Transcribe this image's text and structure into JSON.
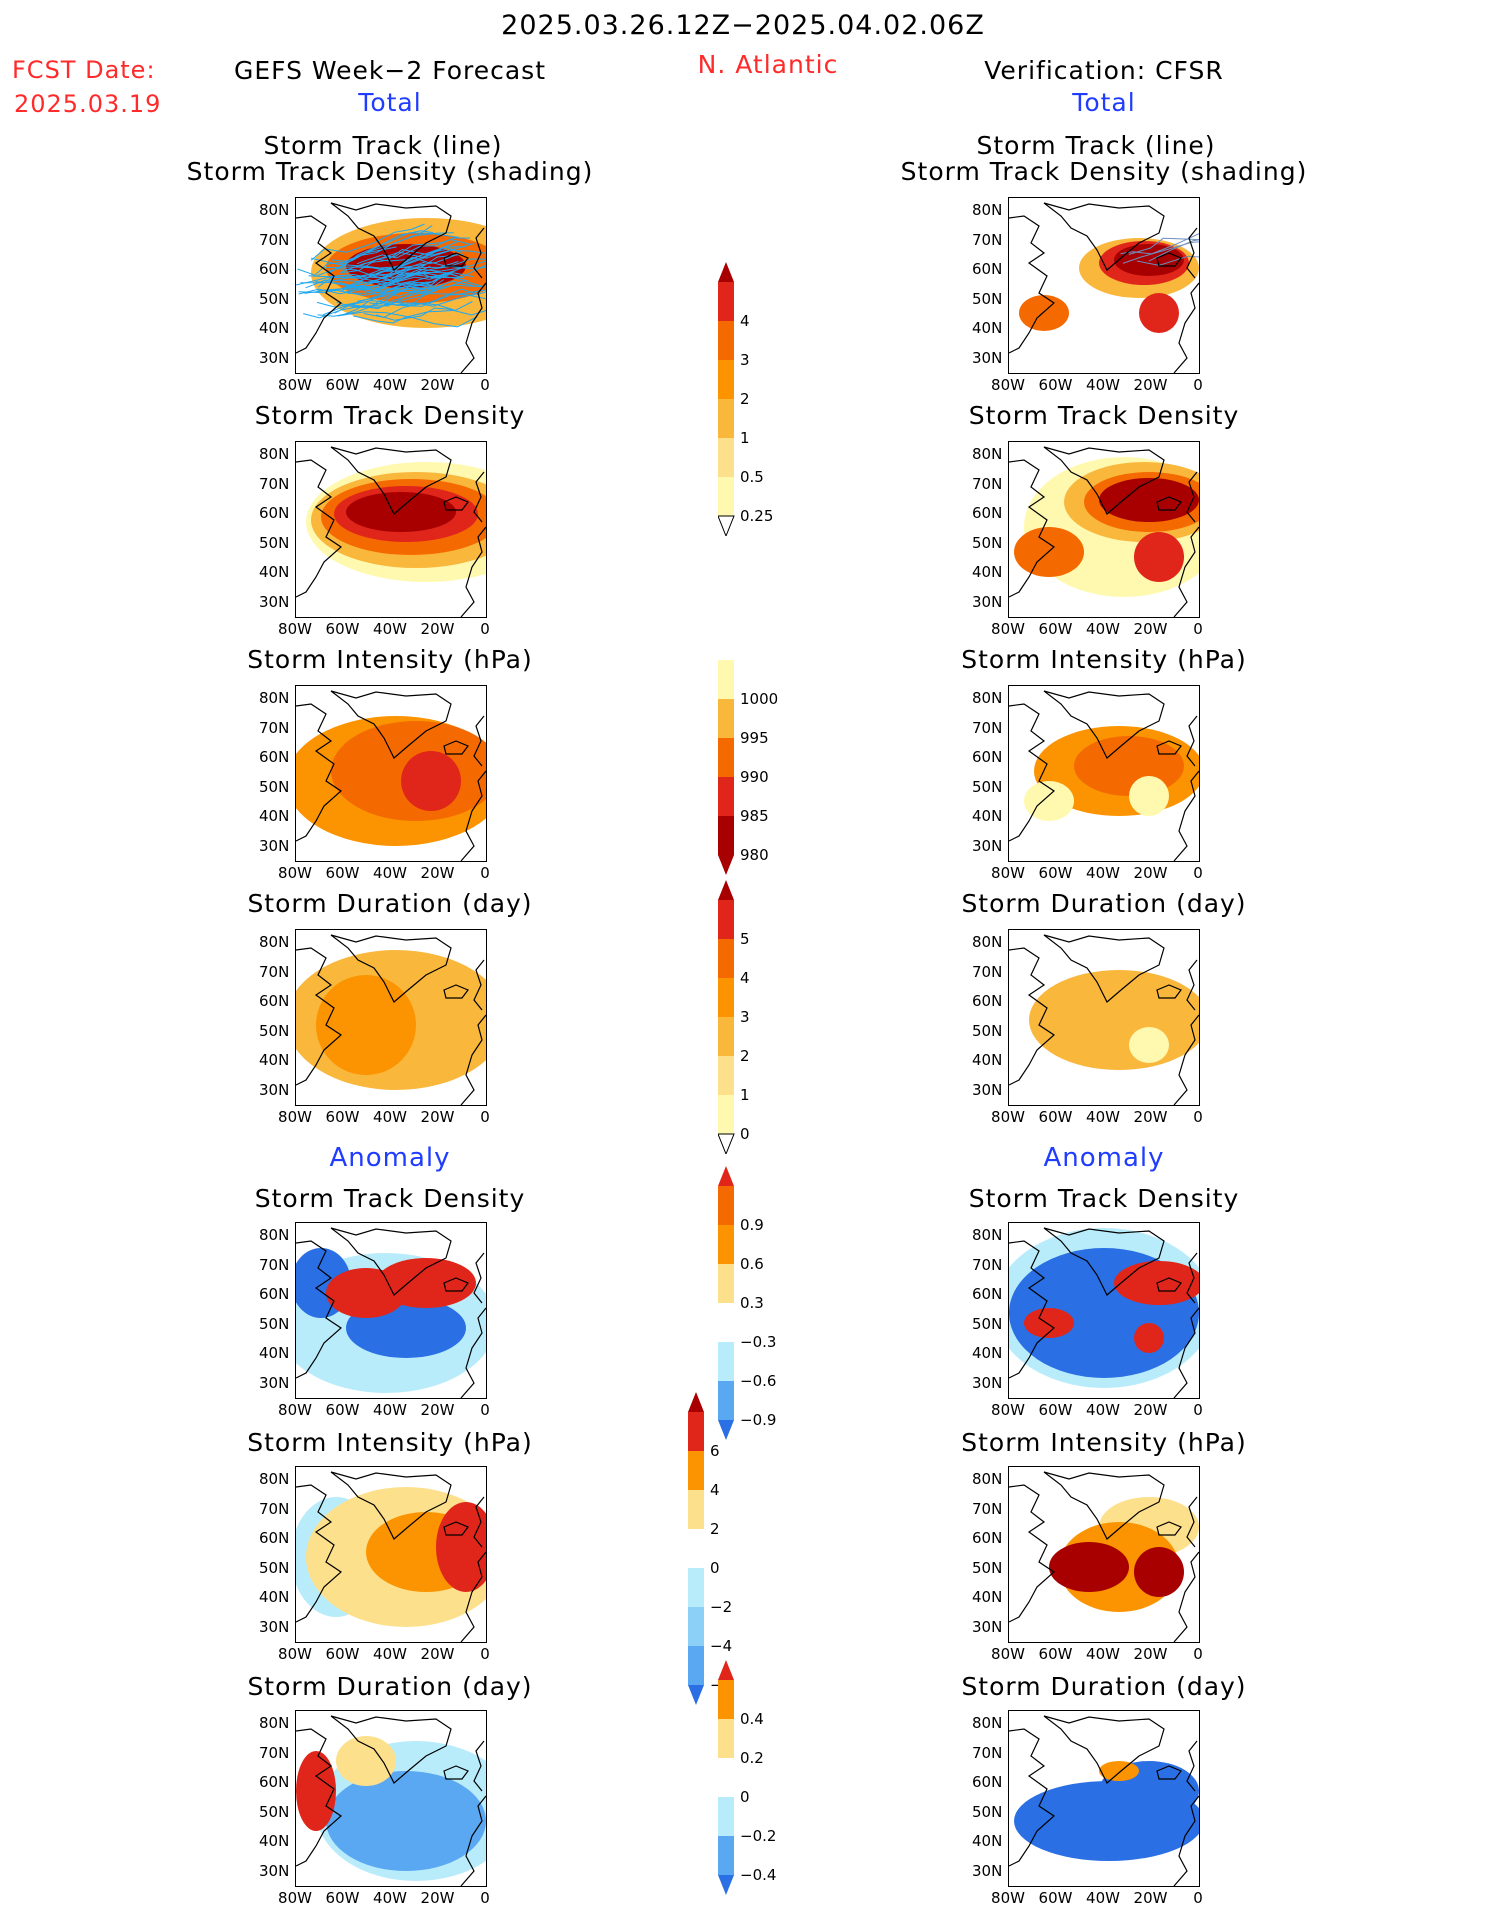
{
  "header": {
    "date_range": "2025.03.26.12Z−2025.04.02.06Z",
    "fcst_label": "FCST Date:",
    "fcst_date": "2025.03.19",
    "left_title": "GEFS Week−2 Forecast",
    "region": "N. Atlantic",
    "right_title": "Verification: CFSR"
  },
  "sections": {
    "total": "Total",
    "anomaly": "Anomaly"
  },
  "panel_titles": {
    "track_line": "Storm Track (line)",
    "track_shading": "Storm Track Density (shading)",
    "density": "Storm Track Density",
    "intensity": "Storm Intensity (hPa)",
    "duration": "Storm Duration (day)"
  },
  "axes": {
    "lat_labels": [
      "80N",
      "70N",
      "60N",
      "50N",
      "40N",
      "30N"
    ],
    "lon_labels": [
      "80W",
      "60W",
      "40W",
      "20W",
      "0"
    ]
  },
  "colorbars": {
    "total_density": [
      "4",
      "3",
      "2",
      "1",
      "0.5",
      "0.25"
    ],
    "total_intensity": [
      "1000",
      "995",
      "990",
      "985",
      "980"
    ],
    "total_duration": [
      "5",
      "4",
      "3",
      "2",
      "1",
      "0"
    ],
    "anom_density": [
      "0.9",
      "0.6",
      "0.3",
      "−0.3",
      "−0.6",
      "−0.9"
    ],
    "anom_intensity": [
      "6",
      "4",
      "2",
      "0",
      "−2",
      "−4",
      "−6"
    ],
    "anom_duration": [
      "0.4",
      "0.2",
      "0",
      "−0.2",
      "−0.4"
    ]
  },
  "colors": {
    "warm": [
      "#fff9b0",
      "#fde08c",
      "#f9b73c",
      "#fb9400",
      "#f56a00",
      "#e0261a",
      "#a80000"
    ],
    "cool": [
      "#ffffff",
      "#b9ecfb",
      "#8cd0f8",
      "#5aa7f2",
      "#2a6fe4",
      "#1246c8"
    ],
    "track_line": "#1ea7f0",
    "header_red": "#ff2a2a",
    "section_blue": "#1f3cff"
  }
}
